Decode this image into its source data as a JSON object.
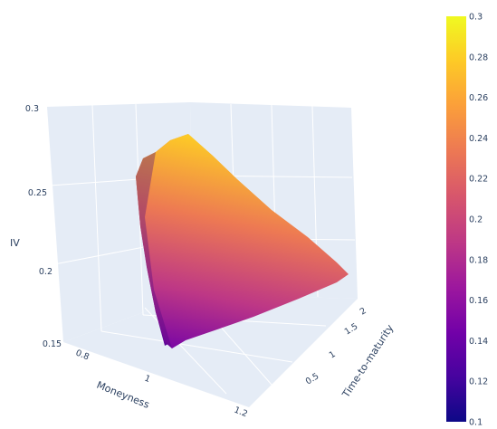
{
  "chart_data": {
    "type": "surface",
    "x_axis": {
      "title": "Moneyness",
      "ticks": [
        "0.8",
        "1",
        "1.2"
      ],
      "range": [
        0.75,
        1.25
      ]
    },
    "y_axis": {
      "title": "Time-to-maturity",
      "ticks": [
        "0.5",
        "1",
        "1.5",
        "2"
      ],
      "range": [
        0.1,
        2.1
      ]
    },
    "z_axis": {
      "title": "IV",
      "ticks": [
        "0.15",
        "0.2",
        "0.25",
        "0.3"
      ],
      "range": [
        0.15,
        0.3
      ]
    },
    "colorbar": {
      "min": 0.1,
      "max": 0.3,
      "ticks": [
        "0.3",
        "0.28",
        "0.26",
        "0.24",
        "0.22",
        "0.2",
        "0.18",
        "0.16",
        "0.14",
        "0.12",
        "0.1"
      ],
      "colorscale": [
        "#0d0887",
        "#46039f",
        "#7201a8",
        "#9c179e",
        "#bd3786",
        "#d8576b",
        "#ed7953",
        "#fb9f3a",
        "#fdca26",
        "#f0f921"
      ]
    },
    "surface": {
      "moneyness": [
        0.8,
        0.85,
        0.9,
        0.95,
        1.0,
        1.05,
        1.1,
        1.15,
        1.2
      ],
      "iv_range": [
        0.165,
        0.28
      ],
      "smile_at_short_maturity": [
        0.28,
        0.272,
        0.262,
        0.25,
        0.237,
        0.223,
        0.21,
        0.197,
        0.184
      ],
      "smile_at_long_maturity": [
        0.165,
        0.168,
        0.172,
        0.176,
        0.18,
        0.183,
        0.186,
        0.189,
        0.192
      ]
    },
    "grid": true
  }
}
